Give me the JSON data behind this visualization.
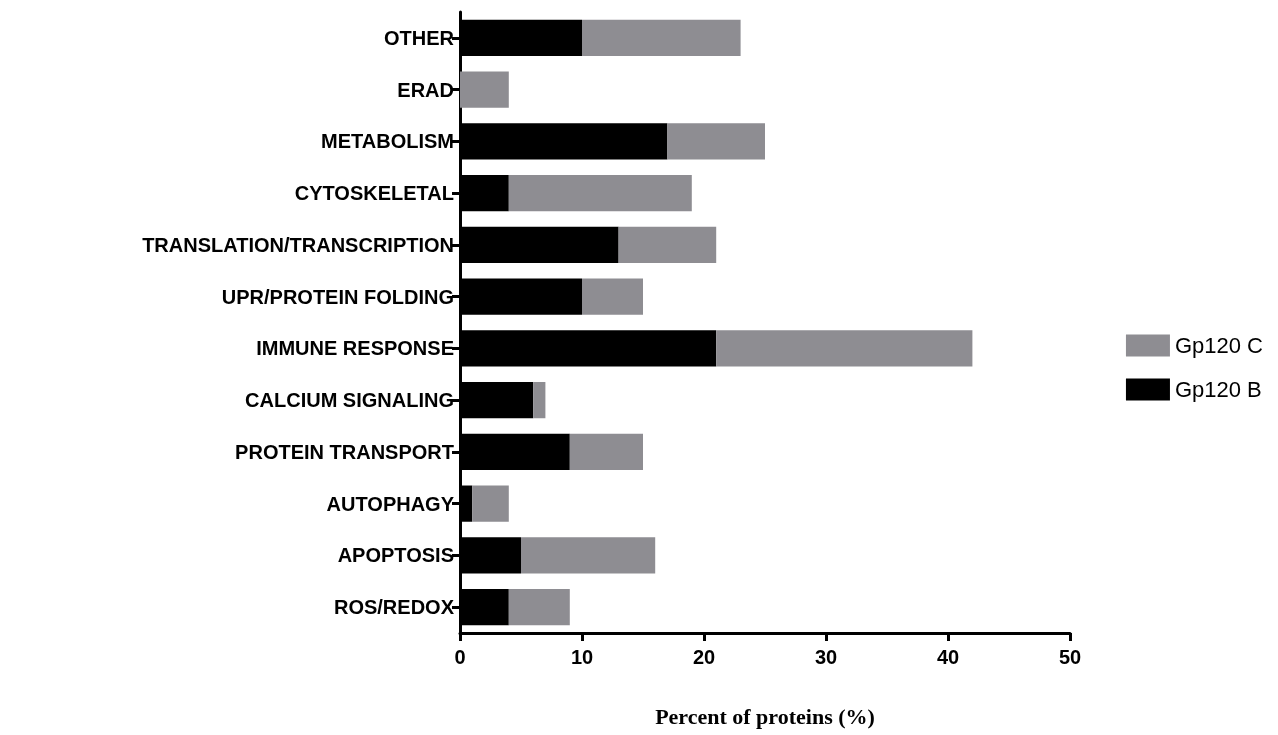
{
  "chart_data": {
    "type": "bar",
    "orientation": "horizontal",
    "stacked": true,
    "xlabel": "Percent of proteins (%)",
    "categories": [
      "OTHER",
      "ERAD",
      "METABOLISM",
      "CYTOSKELETAL",
      "TRANSLATION/TRANSCRIPTION",
      "UPR/PROTEIN FOLDING",
      "IMMUNE RESPONSE",
      "CALCIUM SIGNALING",
      "PROTEIN TRANSPORT",
      "AUTOPHAGY",
      "APOPTOSIS",
      "ROS/REDOX"
    ],
    "series": [
      {
        "name": "Gp120 B",
        "color": "#000000",
        "values": [
          10,
          0,
          17,
          4,
          13,
          10,
          21,
          6,
          9,
          1,
          5,
          4
        ]
      },
      {
        "name": "Gp120 C",
        "color": "#8e8d92",
        "values": [
          13,
          4,
          8,
          15,
          8,
          5,
          21,
          1,
          6,
          3,
          11,
          5
        ]
      }
    ],
    "xlim": [
      0,
      50
    ],
    "xticks": [
      0,
      10,
      20,
      30,
      40,
      50
    ],
    "grid": false,
    "legend": "right"
  }
}
